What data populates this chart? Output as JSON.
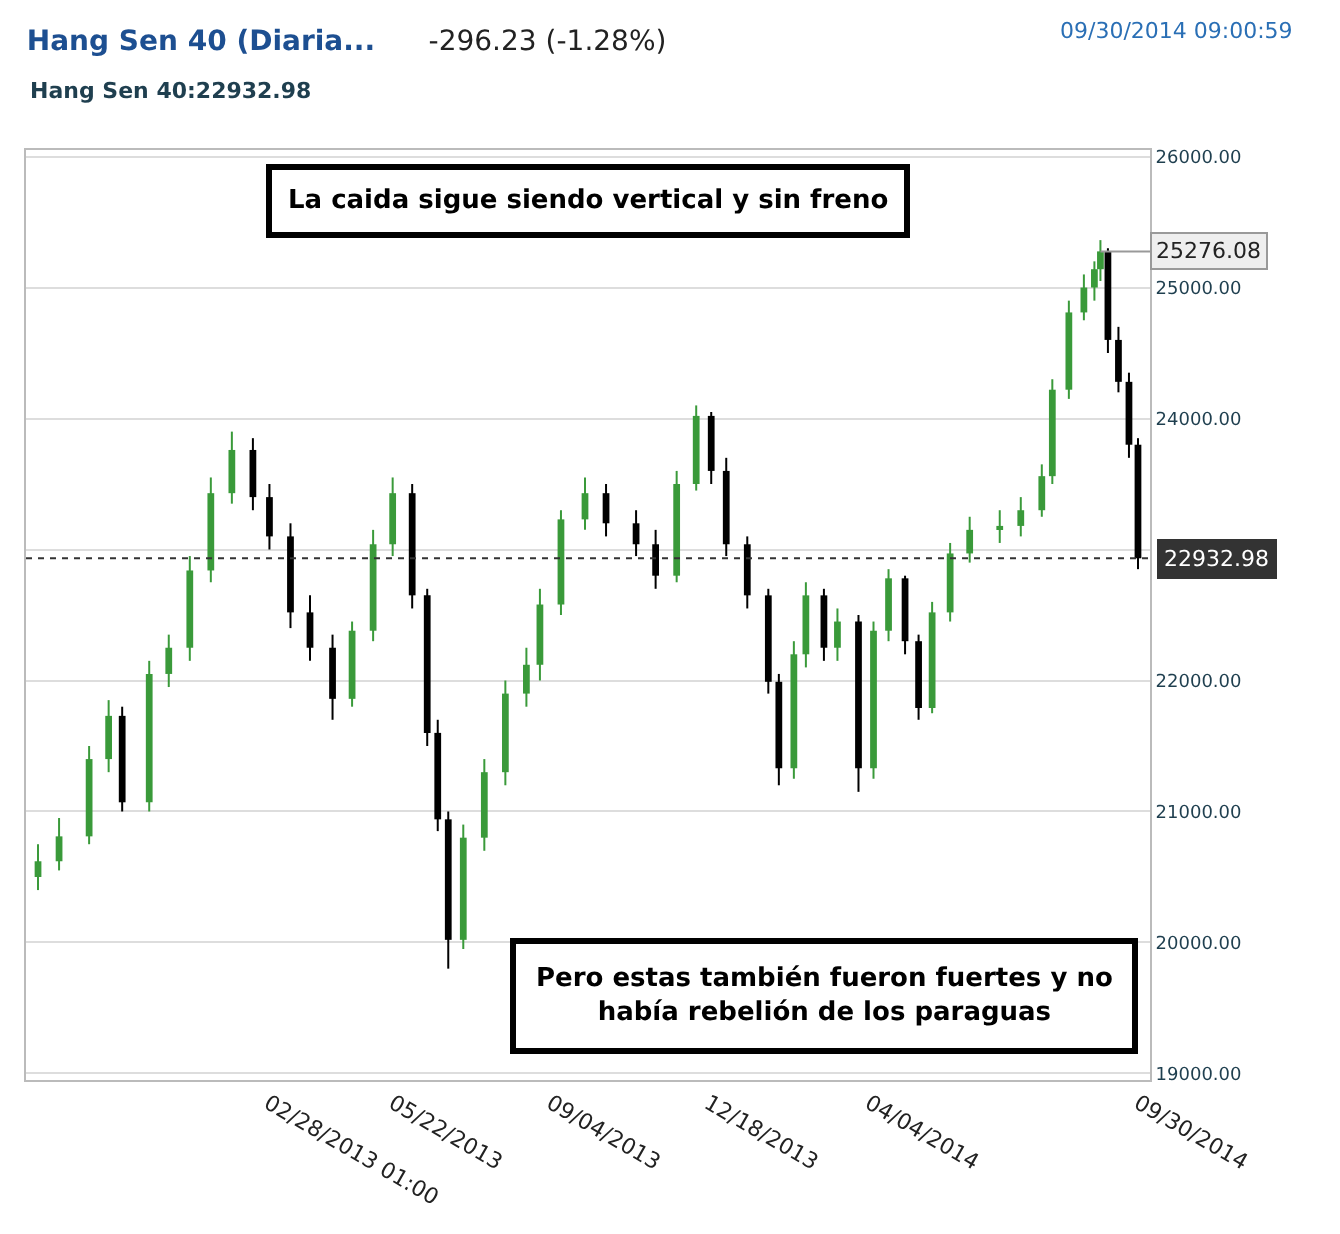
{
  "chart_data": {
    "type": "candlestick",
    "title": "Hang Sen 40 (Diaria...",
    "subtitle": "-296.23 (-1.28%)",
    "x": [
      "2012-09-28",
      "2012-10-12",
      "2012-11-01",
      "2012-11-14",
      "2012-11-23",
      "2012-12-11",
      "2012-12-24",
      "2013-01-07",
      "2013-01-21",
      "2013-02-04",
      "2013-02-18",
      "2013-03-01",
      "2013-03-15",
      "2013-03-28",
      "2013-04-12",
      "2013-04-25",
      "2013-05-09",
      "2013-05-22",
      "2013-06-04",
      "2013-06-14",
      "2013-06-21",
      "2013-06-28",
      "2013-07-08",
      "2013-07-22",
      "2013-08-05",
      "2013-08-19",
      "2013-08-28",
      "2013-09-11",
      "2013-09-27",
      "2013-10-11",
      "2013-10-31",
      "2013-11-13",
      "2013-11-27",
      "2013-12-10",
      "2013-12-20",
      "2013-12-30",
      "2014-01-13",
      "2014-01-27",
      "2014-02-03",
      "2014-02-13",
      "2014-02-21",
      "2014-03-05",
      "2014-03-14",
      "2014-03-28",
      "2014-04-07",
      "2014-04-17",
      "2014-04-28",
      "2014-05-07",
      "2014-05-16",
      "2014-05-28",
      "2014-06-10",
      "2014-06-30",
      "2014-07-14",
      "2014-07-28",
      "2014-08-04",
      "2014-08-15",
      "2014-08-25",
      "2014-09-01",
      "2014-09-05",
      "2014-09-10",
      "2014-09-17",
      "2014-09-24",
      "2014-09-30"
    ],
    "ohlc": [
      [
        20500,
        20750,
        20400,
        20620
      ],
      [
        20620,
        20950,
        20550,
        20810
      ],
      [
        20810,
        21500,
        20750,
        21400
      ],
      [
        21400,
        21850,
        21300,
        21730
      ],
      [
        21730,
        21800,
        21000,
        21070
      ],
      [
        21070,
        22150,
        21000,
        22050
      ],
      [
        22050,
        22350,
        21950,
        22250
      ],
      [
        22250,
        22950,
        22150,
        22840
      ],
      [
        22840,
        23550,
        22750,
        23430
      ],
      [
        23430,
        23900,
        23350,
        23760
      ],
      [
        23760,
        23850,
        23300,
        23400
      ],
      [
        23400,
        23500,
        23000,
        23100
      ],
      [
        23100,
        23200,
        22400,
        22520
      ],
      [
        22520,
        22650,
        22150,
        22250
      ],
      [
        22250,
        22350,
        21700,
        21860
      ],
      [
        21860,
        22450,
        21800,
        22380
      ],
      [
        22380,
        23150,
        22300,
        23040
      ],
      [
        23040,
        23550,
        22950,
        23430
      ],
      [
        23430,
        23500,
        22550,
        22650
      ],
      [
        22650,
        22700,
        21500,
        21600
      ],
      [
        21600,
        21700,
        20850,
        20940
      ],
      [
        20940,
        21000,
        19800,
        20020
      ],
      [
        20020,
        20900,
        19950,
        20800
      ],
      [
        20800,
        21400,
        20700,
        21300
      ],
      [
        21300,
        22000,
        21200,
        21900
      ],
      [
        21900,
        22250,
        21800,
        22120
      ],
      [
        22120,
        22700,
        22000,
        22580
      ],
      [
        22580,
        23300,
        22500,
        23230
      ],
      [
        23230,
        23550,
        23150,
        23430
      ],
      [
        23430,
        23500,
        23100,
        23200
      ],
      [
        23200,
        23300,
        22950,
        23040
      ],
      [
        23040,
        23150,
        22700,
        22800
      ],
      [
        22800,
        23600,
        22750,
        23500
      ],
      [
        23500,
        24100,
        23450,
        24020
      ],
      [
        24020,
        24050,
        23500,
        23600
      ],
      [
        23600,
        23700,
        22950,
        23040
      ],
      [
        23040,
        23100,
        22550,
        22650
      ],
      [
        22650,
        22700,
        21900,
        21990
      ],
      [
        21990,
        22050,
        21200,
        21330
      ],
      [
        21330,
        22300,
        21250,
        22200
      ],
      [
        22200,
        22750,
        22100,
        22650
      ],
      [
        22650,
        22700,
        22150,
        22250
      ],
      [
        22250,
        22550,
        22150,
        22450
      ],
      [
        22450,
        22500,
        21150,
        21330
      ],
      [
        21330,
        22450,
        21250,
        22380
      ],
      [
        22380,
        22850,
        22300,
        22780
      ],
      [
        22780,
        22800,
        22200,
        22300
      ],
      [
        22300,
        22350,
        21700,
        21790
      ],
      [
        21790,
        22600,
        21750,
        22520
      ],
      [
        22520,
        23050,
        22450,
        22970
      ],
      [
        22970,
        23250,
        22900,
        23150
      ],
      [
        23150,
        23300,
        23050,
        23180
      ],
      [
        23180,
        23400,
        23100,
        23300
      ],
      [
        23300,
        23650,
        23250,
        23560
      ],
      [
        23560,
        24300,
        23500,
        24220
      ],
      [
        24220,
        24900,
        24150,
        24810
      ],
      [
        24810,
        25100,
        24750,
        25000
      ],
      [
        25000,
        25200,
        24900,
        25140
      ],
      [
        25140,
        25362,
        25050,
        25276.08
      ],
      [
        25276.08,
        25300,
        24500,
        24600
      ],
      [
        24600,
        24700,
        24200,
        24280
      ],
      [
        24280,
        24350,
        23700,
        23800
      ],
      [
        23800,
        23850,
        22850,
        22932.98
      ]
    ],
    "colors": [
      "#3a9a3a",
      "#3a9a3a",
      "#3a9a3a",
      "#3a9a3a",
      "#000000",
      "#3a9a3a",
      "#3a9a3a",
      "#3a9a3a",
      "#3a9a3a",
      "#3a9a3a",
      "#000000",
      "#000000",
      "#000000",
      "#000000",
      "#000000",
      "#3a9a3a",
      "#3a9a3a",
      "#3a9a3a",
      "#000000",
      "#000000",
      "#000000",
      "#000000",
      "#3a9a3a",
      "#3a9a3a",
      "#3a9a3a",
      "#3a9a3a",
      "#3a9a3a",
      "#3a9a3a",
      "#3a9a3a",
      "#000000",
      "#000000",
      "#000000",
      "#3a9a3a",
      "#3a9a3a",
      "#000000",
      "#000000",
      "#000000",
      "#000000",
      "#000000",
      "#3a9a3a",
      "#3a9a3a",
      "#000000",
      "#3a9a3a",
      "#000000",
      "#3a9a3a",
      "#3a9a3a",
      "#000000",
      "#000000",
      "#3a9a3a",
      "#3a9a3a",
      "#3a9a3a",
      "#3a9a3a",
      "#3a9a3a",
      "#3a9a3a",
      "#3a9a3a",
      "#3a9a3a",
      "#3a9a3a",
      "#3a9a3a",
      "#3a9a3a",
      "#000000",
      "#000000",
      "#000000",
      "#000000"
    ],
    "xlim": [
      "2012-09-20",
      "2014-10-08"
    ],
    "xticks": [
      {
        "value": "2013-02-28",
        "label": "02/28/2013 01:00"
      },
      {
        "value": "2013-05-22",
        "label": "05/22/2013"
      },
      {
        "value": "2013-09-04",
        "label": "09/04/2013"
      },
      {
        "value": "2013-12-18",
        "label": "12/18/2013"
      },
      {
        "value": "2014-04-04",
        "label": "04/04/2014"
      },
      {
        "value": "2014-09-30",
        "label": "09/30/2014"
      }
    ],
    "ylim": [
      18950,
      26050
    ],
    "yticks": [
      {
        "value": 19000,
        "label": "19000.00"
      },
      {
        "value": 20000,
        "label": "20000.00"
      },
      {
        "value": 21000,
        "label": "21000.00"
      },
      {
        "value": 22000,
        "label": "22000.00"
      },
      {
        "value": 23000,
        "label": null
      },
      {
        "value": 24000,
        "label": "24000.00"
      },
      {
        "value": 25000,
        "label": "25000.00"
      },
      {
        "value": 26000,
        "label": "26000.00"
      }
    ],
    "grid": "y",
    "legend": false,
    "ref_lines": [
      {
        "axis": "y",
        "value": 22932.98,
        "label": "22932.98",
        "color": "#333333",
        "line_style": "dotted"
      }
    ],
    "annotations": [
      "Hang Sen 40:22932.98",
      "09/30/2014 09:00:59",
      {
        "text": "25276.08",
        "x": "2014-09-05",
        "y": 25276.08
      },
      "La caida sigue siendo vertical y sin freno",
      "Pero estas también fueron fuertes y no había rebelión de los paraguas"
    ]
  }
}
